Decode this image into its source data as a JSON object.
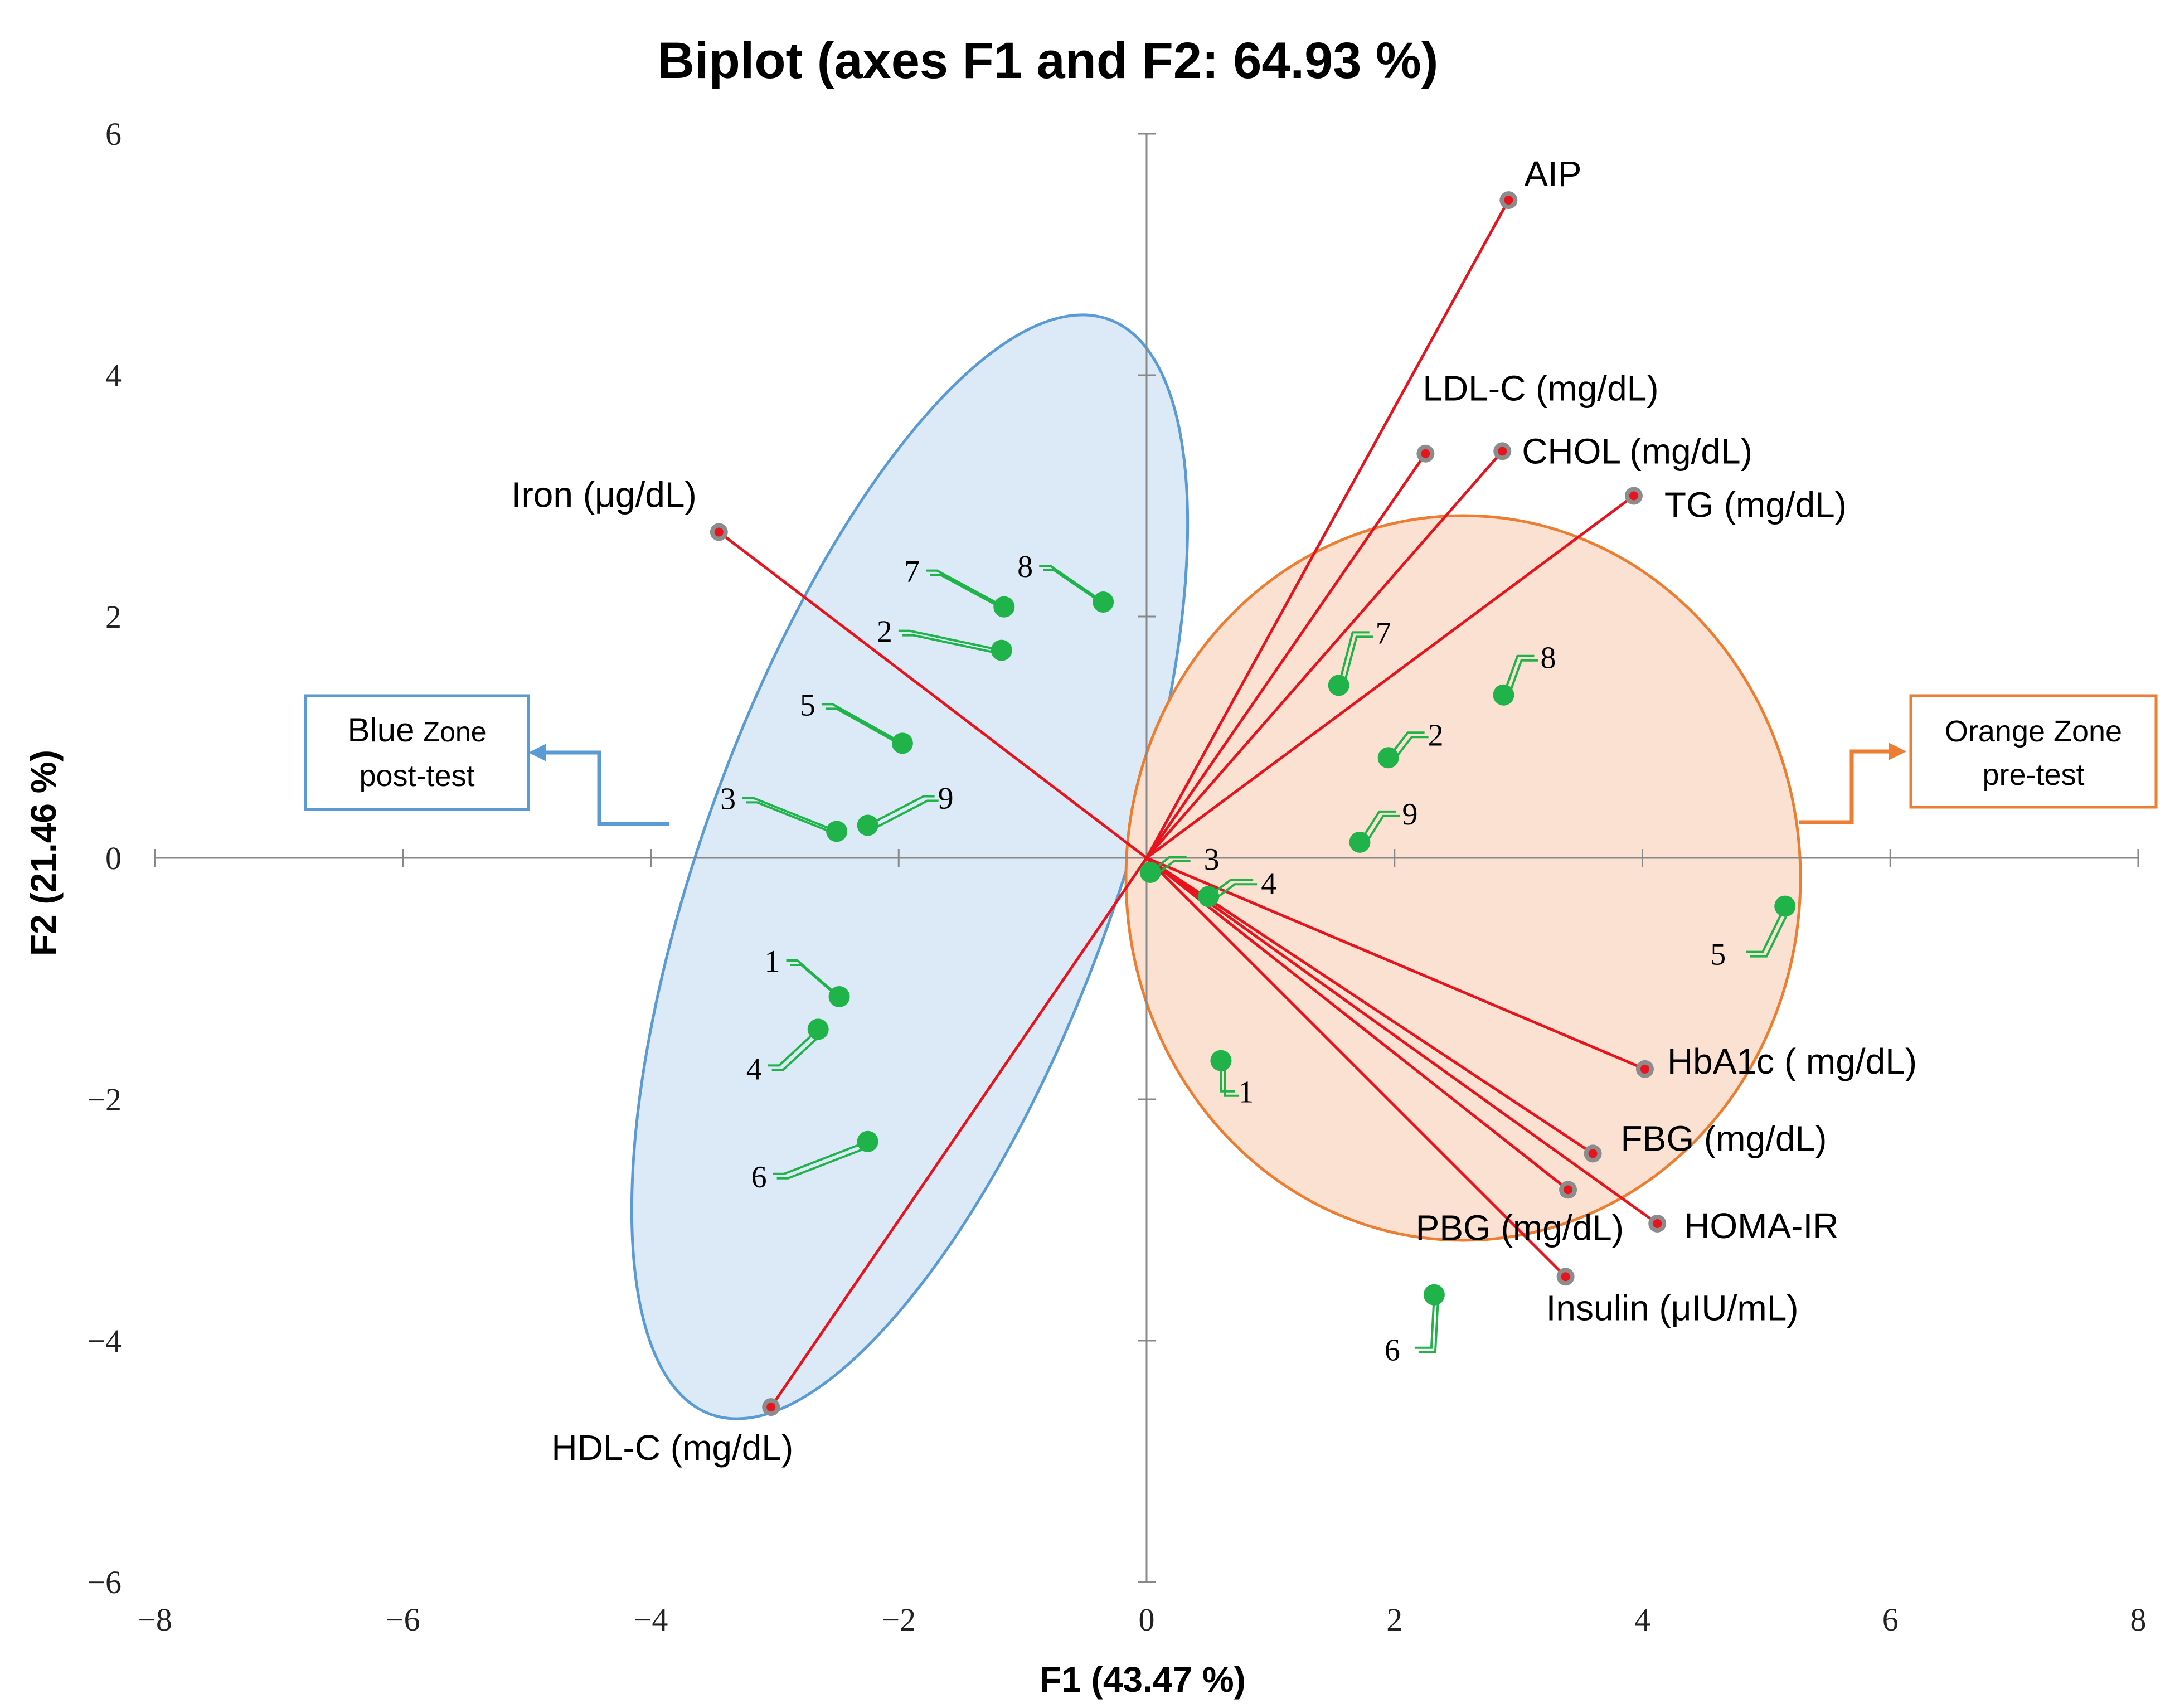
{
  "chart_data": {
    "type": "scatter",
    "subtype": "biplot",
    "title": "Biplot (axes F1 and F2: 64.93 %)",
    "xlabel": "F1 (43.47 %)",
    "ylabel": "F2 (21.46 %)",
    "xlim": [
      -8,
      8
    ],
    "ylim": [
      -6,
      6
    ],
    "xticks": [
      -8,
      -6,
      -4,
      -2,
      0,
      2,
      4,
      6,
      8
    ],
    "yticks": [
      -6,
      -4,
      -2,
      0,
      2,
      4,
      6
    ],
    "xtick_labels": [
      "−8",
      "−6",
      "−4",
      "−2",
      "0",
      "2",
      "4",
      "6",
      "8"
    ],
    "ytick_labels": [
      "−6",
      "−4",
      "−2",
      "0",
      "2",
      "4",
      "6"
    ],
    "variables": [
      {
        "name": "AIP",
        "x": 2.92,
        "y": 5.45
      },
      {
        "name": "LDL-C (mg/dL)",
        "x": 2.25,
        "y": 3.35
      },
      {
        "name": "CHOL (mg/dL)",
        "x": 2.87,
        "y": 3.37
      },
      {
        "name": "TG (mg/dL)",
        "x": 3.93,
        "y": 3.0
      },
      {
        "name": "Iron (μg/dL)",
        "x": -3.45,
        "y": 2.7
      },
      {
        "name": "HbA1c ( mg/dL)",
        "x": 4.02,
        "y": -1.75
      },
      {
        "name": "FBG (mg/dL)",
        "x": 3.6,
        "y": -2.45
      },
      {
        "name": "PBG (mg/dL)",
        "x": 3.4,
        "y": -2.75
      },
      {
        "name": "HOMA-IR",
        "x": 4.12,
        "y": -3.03
      },
      {
        "name": "Insulin (μIU/mL)",
        "x": 3.38,
        "y": -3.47
      },
      {
        "name": "HDL-C (mg/dL)",
        "x": -3.03,
        "y": -4.55
      }
    ],
    "post_test_observations": [
      {
        "label": "7",
        "x": -1.15,
        "y": 2.08
      },
      {
        "label": "8",
        "x": -0.35,
        "y": 2.12
      },
      {
        "label": "2",
        "x": -1.17,
        "y": 1.72
      },
      {
        "label": "5",
        "x": -1.97,
        "y": 0.95
      },
      {
        "label": "3",
        "x": -2.5,
        "y": 0.22
      },
      {
        "label": "9",
        "x": -2.25,
        "y": 0.27
      },
      {
        "label": "1",
        "x": -2.48,
        "y": -1.15
      },
      {
        "label": "4",
        "x": -2.65,
        "y": -1.42
      },
      {
        "label": "6",
        "x": -2.25,
        "y": -2.35
      }
    ],
    "pre_test_observations": [
      {
        "label": "7",
        "x": 1.55,
        "y": 1.43
      },
      {
        "label": "8",
        "x": 2.88,
        "y": 1.35
      },
      {
        "label": "2",
        "x": 1.95,
        "y": 0.83
      },
      {
        "label": "9",
        "x": 1.72,
        "y": 0.13
      },
      {
        "label": "3",
        "x": 0.03,
        "y": -0.12
      },
      {
        "label": "4",
        "x": 0.5,
        "y": -0.32
      },
      {
        "label": "5",
        "x": 5.15,
        "y": -0.4
      },
      {
        "label": "1",
        "x": 0.6,
        "y": -1.68
      },
      {
        "label": "6",
        "x": 2.32,
        "y": -3.62
      }
    ],
    "zones": [
      {
        "name": "Blue Zone",
        "line1": "Blue",
        "line1_small": "Zone",
        "line2": "post-test",
        "color": "#5b9bd5",
        "fill": "#dbeaf6"
      },
      {
        "name": "Orange Zone",
        "line1": "Orange Zone",
        "line2": "pre-test",
        "color": "#ed7d31",
        "fill": "#fbe1d1"
      }
    ],
    "colors": {
      "vector": "#e8141d",
      "observation": "#1fb34a",
      "variable_point_outer": "#8c8c8c",
      "variable_point_inner": "#e8141d",
      "axis": "#888888"
    }
  }
}
